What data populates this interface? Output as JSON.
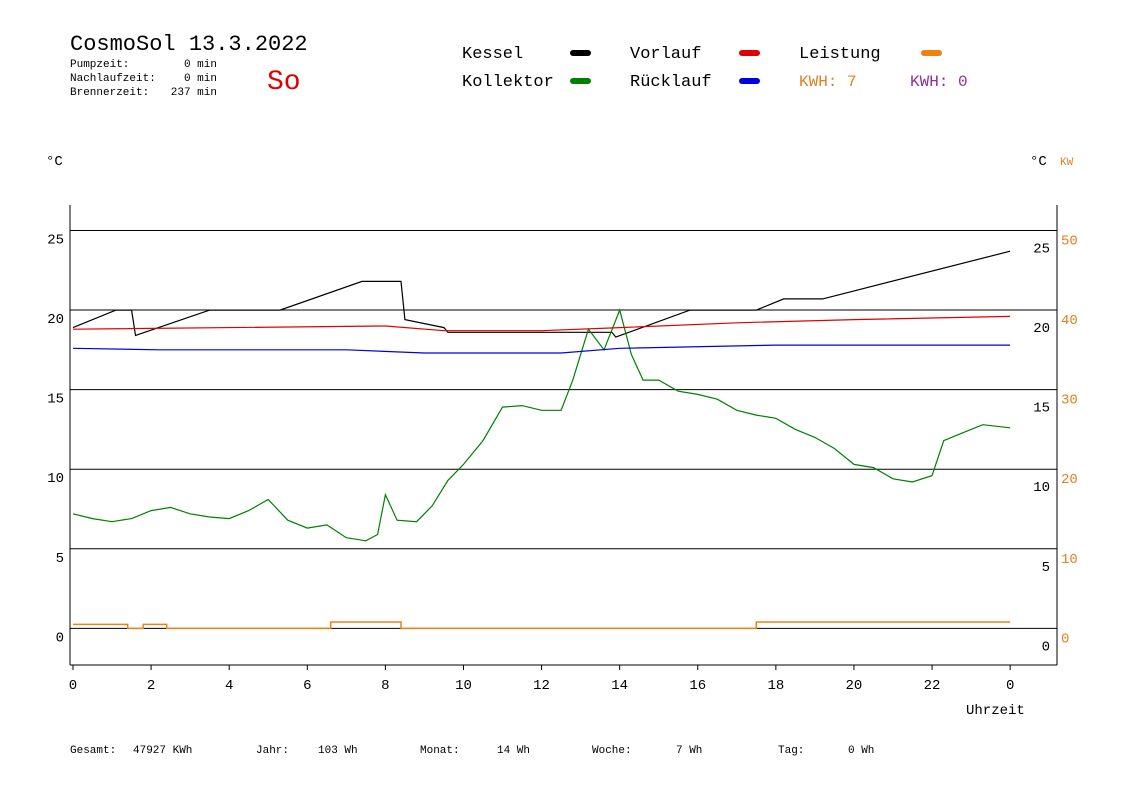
{
  "header": {
    "title": "CosmoSol 13.3.2022",
    "day": "So",
    "stats": [
      {
        "label": "Pumpzeit:",
        "value": "0 min"
      },
      {
        "label": "Nachlaufzeit:",
        "value": "0 min"
      },
      {
        "label": "Brennerzeit:",
        "value": "237 min"
      }
    ]
  },
  "legend_extra": [
    {
      "text": "KWH: 7",
      "color": "#e08020"
    },
    {
      "text": "KWH: 0",
      "color": "#903090"
    }
  ],
  "footer": [
    {
      "label": "Gesamt:",
      "value": "47927 KWh"
    },
    {
      "label": "Jahr:",
      "value": "103 Wh"
    },
    {
      "label": "Monat:",
      "value": "14 Wh"
    },
    {
      "label": "Woche:",
      "value": "7 Wh"
    },
    {
      "label": "Tag:",
      "value": "0 Wh"
    }
  ],
  "chart_data": {
    "type": "line",
    "y_unit": "°C",
    "y2_unit_left": "°C",
    "y2_unit": "KW",
    "x_label": "Uhrzeit",
    "xlim": [
      0,
      25.2
    ],
    "xticks": [
      0,
      2,
      4,
      6,
      8,
      10,
      12,
      14,
      16,
      18,
      20,
      22,
      {
        "value": 24,
        "label": "0"
      }
    ],
    "ylim": [
      -2.3,
      26.6
    ],
    "yticks": [
      0,
      5,
      10,
      15,
      20,
      25
    ],
    "y2lim": [
      -4.6,
      53.2
    ],
    "y2ticks": [
      0,
      10,
      20,
      30,
      40,
      50
    ],
    "y2color": "#e08020",
    "grid": true,
    "series": [
      {
        "name": "Kessel",
        "color": "#000000",
        "x": [
          0,
          1.1,
          1.5,
          1.6,
          3.5,
          5.3,
          7.4,
          8.4,
          8.5,
          9.5,
          9.6,
          13.8,
          13.9,
          15.8,
          17.5,
          18.2,
          19.2,
          24
        ],
        "values": [
          18.9,
          20,
          20,
          18.4,
          20,
          20,
          21.8,
          21.8,
          19.4,
          18.9,
          18.6,
          18.6,
          18.3,
          20,
          20,
          20.7,
          20.7,
          23.7
        ]
      },
      {
        "name": "Kollektor",
        "color": "#008000",
        "x": [
          0,
          0.5,
          1,
          1.5,
          2,
          2.5,
          3,
          3.5,
          4,
          4.5,
          5,
          5.5,
          6,
          6.5,
          7,
          7.5,
          7.8,
          8,
          8.3,
          8.8,
          9.2,
          9.6,
          10,
          10.5,
          11,
          11.5,
          12,
          12.5,
          12.8,
          13.2,
          13.6,
          14,
          14.3,
          14.6,
          15,
          15.5,
          16,
          16.5,
          17,
          17.5,
          18,
          18.5,
          19,
          19.5,
          20,
          20.5,
          21,
          21.5,
          22,
          22.3,
          22.8,
          23.3,
          24
        ],
        "values": [
          7.2,
          6.9,
          6.7,
          6.9,
          7.4,
          7.6,
          7.2,
          7.0,
          6.9,
          7.4,
          8.1,
          6.8,
          6.3,
          6.5,
          5.7,
          5.5,
          5.9,
          8.4,
          6.8,
          6.7,
          7.7,
          9.3,
          10.3,
          11.8,
          13.9,
          14.0,
          13.7,
          13.7,
          15.6,
          18.8,
          17.5,
          20.0,
          17.2,
          15.6,
          15.6,
          14.9,
          14.7,
          14.4,
          13.7,
          13.4,
          13.2,
          12.5,
          12.0,
          11.3,
          10.3,
          10.1,
          9.4,
          9.2,
          9.6,
          11.8,
          12.3,
          12.8,
          12.6
        ]
      },
      {
        "name": "Vorlauf",
        "color": "#e00000",
        "x": [
          0,
          8,
          9.5,
          12,
          14,
          17,
          20,
          24
        ],
        "values": [
          18.8,
          19.0,
          18.7,
          18.7,
          18.9,
          19.2,
          19.4,
          19.6
        ]
      },
      {
        "name": "Rücklauf",
        "color": "#0000e0",
        "x": [
          0,
          2.2,
          7,
          9,
          12.5,
          14,
          18,
          24
        ],
        "values": [
          17.6,
          17.5,
          17.5,
          17.3,
          17.3,
          17.6,
          17.8,
          17.8
        ]
      },
      {
        "name": "Leistung",
        "color": "#f08010",
        "axis": "y2",
        "x": [
          0,
          1.4,
          1.4,
          1.8,
          1.8,
          2.4,
          2.4,
          6.6,
          6.6,
          8.4,
          8.4,
          17.5,
          17.5,
          24
        ],
        "values": [
          0.5,
          0.5,
          0,
          0,
          0.5,
          0.5,
          0,
          0,
          0.8,
          0.8,
          0,
          0,
          0.8,
          0.8
        ]
      }
    ]
  }
}
